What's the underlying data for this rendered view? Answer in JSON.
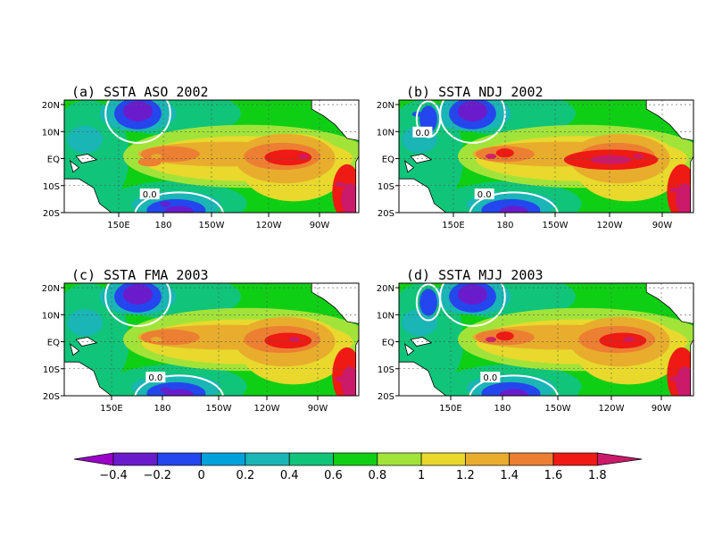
{
  "chart_data": [
    {
      "type": "heatmap",
      "title": "(a) SSTA ASO 2002",
      "x_ticks": [
        "150E",
        "180",
        "150W",
        "120W",
        "90W"
      ],
      "y_ticks": [
        "20N",
        "10N",
        "EQ",
        "10S",
        "20S"
      ],
      "x_range": [
        "130E",
        "70W"
      ],
      "y_range": [
        "20S",
        "20N"
      ],
      "grid": true,
      "contour_label": "0.0",
      "features": [
        {
          "name": "cold anomaly",
          "lon": "170E",
          "lat": "15N",
          "value": -0.4
        },
        {
          "name": "cold anomaly",
          "lon": "175W",
          "lat": "17S",
          "value": -0.3
        },
        {
          "name": "warm tongue",
          "lon": "180",
          "lat": "EQ",
          "value": 1.4
        },
        {
          "name": "warm core",
          "lon": "100W",
          "lat": "EQ",
          "value": 1.8
        },
        {
          "name": "coastal warm",
          "lon": "80W",
          "lat": "10S",
          "value": 1.8
        }
      ]
    },
    {
      "type": "heatmap",
      "title": "(b) SSTA NDJ 2002",
      "x_ticks": [
        "150E",
        "180",
        "150W",
        "120W",
        "90W"
      ],
      "y_ticks": [
        "20N",
        "10N",
        "EQ",
        "10S",
        "20S"
      ],
      "x_range": [
        "130E",
        "70W"
      ],
      "y_range": [
        "20S",
        "20N"
      ],
      "grid": true,
      "contour_label": "0.0",
      "features": [
        {
          "name": "cold anomaly",
          "lon": "170E",
          "lat": "15N",
          "value": -0.4
        },
        {
          "name": "cold anomaly",
          "lon": "140E",
          "lat": "15N",
          "value": -0.2
        },
        {
          "name": "cold anomaly",
          "lon": "175W",
          "lat": "17S",
          "value": -0.2
        },
        {
          "name": "warm tongue",
          "lon": "180",
          "lat": "EQ",
          "value": 1.8
        },
        {
          "name": "warm core",
          "lon": "100W",
          "lat": "EQ",
          "value": 1.8
        },
        {
          "name": "coastal warm",
          "lon": "80W",
          "lat": "12S",
          "value": 1.8
        }
      ]
    },
    {
      "type": "heatmap",
      "title": "(c) SSTA FMA 2003",
      "x_ticks": [
        "150E",
        "180",
        "150W",
        "120W",
        "90W"
      ],
      "y_ticks": [
        "20N",
        "10N",
        "EQ",
        "10S",
        "20S"
      ],
      "x_range": [
        "130E",
        "70W"
      ],
      "y_range": [
        "20S",
        "20N"
      ],
      "grid": true,
      "contour_label": "0.0",
      "features": [
        {
          "name": "cold anomaly",
          "lon": "165E",
          "lat": "15N",
          "value": -0.4
        },
        {
          "name": "cold anomaly",
          "lon": "175W",
          "lat": "18S",
          "value": -0.3
        },
        {
          "name": "warm tongue",
          "lon": "180",
          "lat": "EQ",
          "value": 1.4
        },
        {
          "name": "warm core",
          "lon": "105W",
          "lat": "EQ",
          "value": 1.8
        },
        {
          "name": "coastal warm",
          "lon": "80W",
          "lat": "14S",
          "value": 1.8
        }
      ]
    },
    {
      "type": "heatmap",
      "title": "(d) SSTA MJJ 2003",
      "x_ticks": [
        "150E",
        "180",
        "150W",
        "120W",
        "90W"
      ],
      "y_ticks": [
        "20N",
        "10N",
        "EQ",
        "10S",
        "20S"
      ],
      "x_range": [
        "130E",
        "70W"
      ],
      "y_range": [
        "20S",
        "20N"
      ],
      "grid": true,
      "contour_label": "0.0",
      "features": [
        {
          "name": "cold anomaly",
          "lon": "170E",
          "lat": "15N",
          "value": -0.4
        },
        {
          "name": "cold anomaly",
          "lon": "145E",
          "lat": "12N",
          "value": -0.2
        },
        {
          "name": "cold anomaly",
          "lon": "175W",
          "lat": "17S",
          "value": -0.2
        },
        {
          "name": "warm tongue",
          "lon": "180",
          "lat": "EQ",
          "value": 1.8
        },
        {
          "name": "warm core",
          "lon": "105W",
          "lat": "EQ",
          "value": 1.8
        },
        {
          "name": "coastal warm",
          "lon": "80W",
          "lat": "14S",
          "value": 1.8
        }
      ]
    }
  ],
  "colorbar": {
    "labels": [
      "-0.4",
      "-0.2",
      "0",
      "0.2",
      "0.4",
      "0.6",
      "0.8",
      "1",
      "1.2",
      "1.4",
      "1.6",
      "1.8"
    ],
    "colors": [
      "#9b00c8",
      "#6a1ccc",
      "#2446ee",
      "#00a2dc",
      "#1ab5b5",
      "#10c47a",
      "#0fcf15",
      "#a2e33a",
      "#e8d92c",
      "#e8ad2c",
      "#ec7f32",
      "#ee1a13",
      "#cc1a6a"
    ]
  },
  "colors": {
    "land": "#ffffff",
    "zero_contour": "#ffffff"
  }
}
